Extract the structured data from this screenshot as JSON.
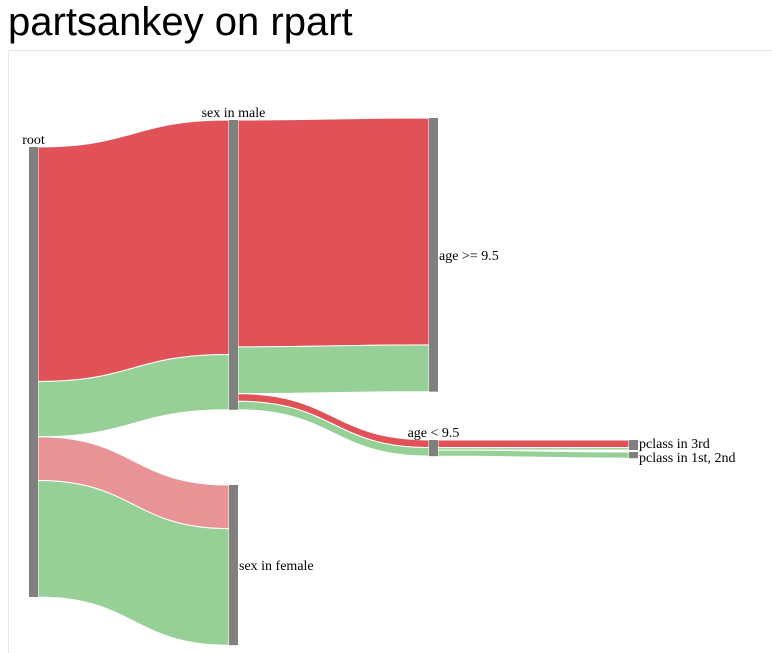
{
  "page": {
    "title": "partsankey on rpart"
  },
  "chart_data": {
    "type": "sankey",
    "colors": {
      "died": "#e05257",
      "survived": "#96d096",
      "died_light": "#e89497",
      "node": "#808080"
    },
    "nodes": [
      {
        "id": "root",
        "label": "root",
        "layer": 0,
        "value": 1309
      },
      {
        "id": "male",
        "label": "sex in male",
        "layer": 1,
        "value": 843
      },
      {
        "id": "female",
        "label": "sex in female",
        "layer": 1,
        "value": 466
      },
      {
        "id": "age_ge",
        "label": "age >= 9.5",
        "layer": 2,
        "value": 796
      },
      {
        "id": "age_lt",
        "label": "age < 9.5",
        "layer": 2,
        "value": 47
      },
      {
        "id": "pclass3",
        "label": "pclass in 3rd",
        "layer": 3,
        "value": 29
      },
      {
        "id": "pclass12",
        "label": "pclass in 1st, 2nd",
        "layer": 3,
        "value": 18
      }
    ],
    "links": [
      {
        "source": "root",
        "target": "male",
        "died": 682,
        "survived": 161,
        "died_color": "died"
      },
      {
        "source": "root",
        "target": "female",
        "died": 127,
        "survived": 339,
        "died_color": "died_light"
      },
      {
        "source": "male",
        "target": "age_ge",
        "died": 660,
        "survived": 136,
        "died_color": "died"
      },
      {
        "source": "male",
        "target": "age_lt",
        "died": 22,
        "survived": 25,
        "died_color": "died"
      },
      {
        "source": "age_lt",
        "target": "pclass3",
        "died": 22,
        "survived": 7,
        "died_color": "died"
      },
      {
        "source": "age_lt",
        "target": "pclass12",
        "died": 0,
        "survived": 18,
        "died_color": "died"
      }
    ]
  }
}
